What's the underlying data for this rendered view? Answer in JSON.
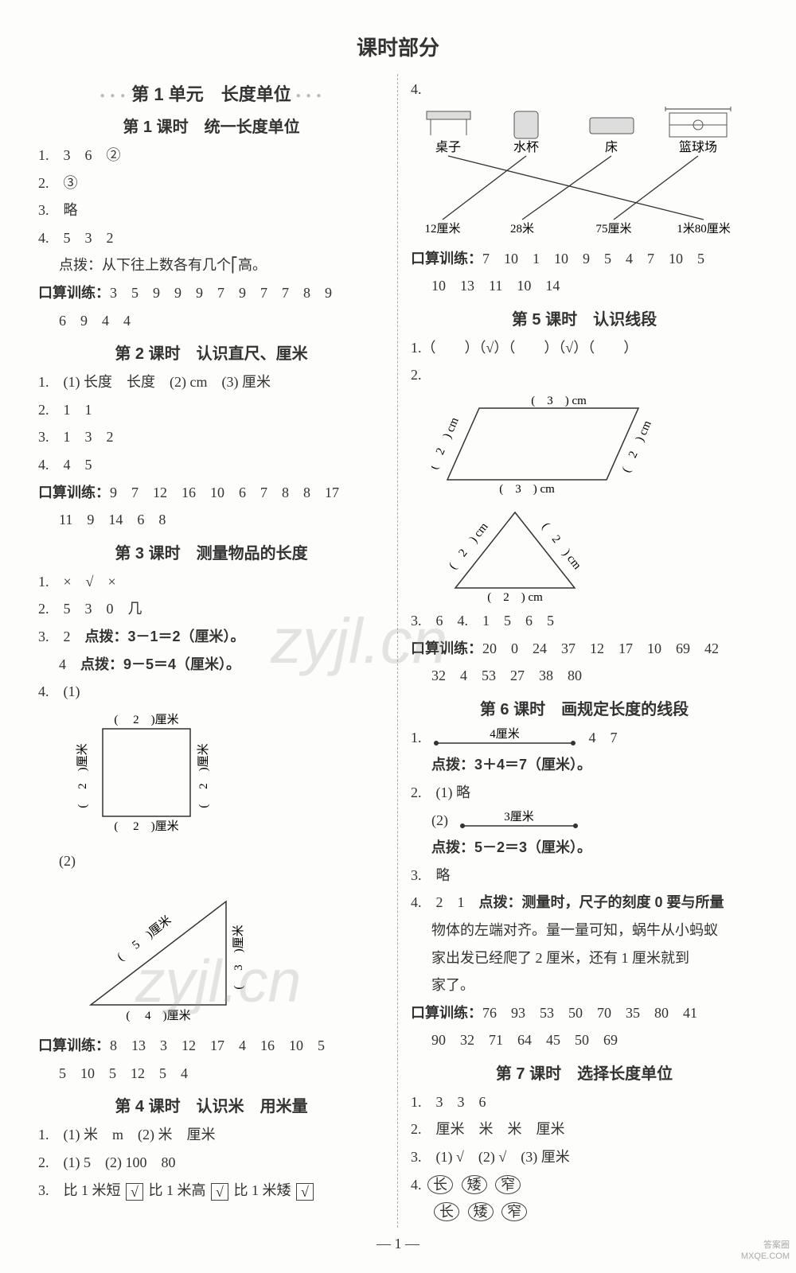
{
  "page_title": "课时部分",
  "page_number": "— 1 —",
  "watermark": "zyjl.cn",
  "corner": {
    "line1": "答案圈",
    "line2": "MXQE.COM"
  },
  "unit1": {
    "header": "第 1 单元　长度单位"
  },
  "lesson1": {
    "title": "第 1 课时　统一长度单位",
    "q1": "1.　3　6　②",
    "q2": "2.　③",
    "q3": "3.　略",
    "q4": "4.　5　3　2",
    "hint": "点拨：从下往上数各有几个⎡高。",
    "calc_label": "口算训练：",
    "calc1": "3　5　9　9　9　7　9　7　7　8　9",
    "calc2": "6　9　4　4"
  },
  "lesson2": {
    "title": "第 2 课时　认识直尺、厘米",
    "q1": "1.　(1) 长度　长度　(2) cm　(3) 厘米",
    "q2": "2.　1　1",
    "q3": "3.　1　3　2",
    "q4": "4.　4　5",
    "calc_label": "口算训练：",
    "calc1": "9　7　12　16　10　6　7　8　8　17",
    "calc2": "11　9　14　6　8"
  },
  "lesson3": {
    "title": "第 3 课时　测量物品的长度",
    "q1": "1.　×　√　×",
    "q2": "2.　5　3　0　几",
    "q3a": "3.　2　",
    "q3a_hint": "点拨：3－1＝2（厘米）。",
    "q3b": "4　",
    "q3b_hint": "点拨：9－5＝4（厘米）。",
    "q4_1": "4.　(1)",
    "square": {
      "top": "( 　2　)厘米",
      "right": "( 　2　)厘米",
      "bottom": "( 　2　)厘米",
      "left": "( 　2　)厘米"
    },
    "q4_2": "(2)",
    "triangle": {
      "hyp": "( 　5　)厘米",
      "right": "( 　3　)厘米",
      "bottom": "( 　4　)厘米"
    },
    "calc_label": "口算训练：",
    "calc1": "8　13　3　12　17　4　16　10　5",
    "calc2": "5　10　5　12　5　4"
  },
  "lesson4": {
    "title": "第 4 课时　认识米　用米量",
    "q1": "1.　(1) 米　m　(2) 米　厘米",
    "q2": "2.　(1) 5　(2) 100　80",
    "q3_a": "3.　比 1 米短",
    "q3_b": "比 1 米高",
    "q3_c": "比 1 米矮",
    "tick": "√",
    "q4_label": "4.",
    "match": {
      "items": [
        "桌子",
        "水杯",
        "床",
        "篮球场"
      ],
      "values": [
        "12厘米",
        "28米",
        "75厘米",
        "1米80厘米"
      ],
      "edges": [
        [
          0,
          3
        ],
        [
          1,
          0
        ],
        [
          2,
          1
        ],
        [
          3,
          2
        ]
      ]
    },
    "calc_label": "口算训练：",
    "calc1": "7　10　1　10　9　5　4　7　10　5",
    "calc2": "10　13　11　10　14"
  },
  "lesson5": {
    "title": "第 5 课时　认识线段",
    "q1": "1.（　　）（√）（　　）（√）（　　）",
    "q2_label": "2.",
    "parallelogram": {
      "top": "(　3　) cm",
      "right": "(　2　) cm",
      "bottom": "(　3　) cm",
      "left": "(　2　) cm"
    },
    "triangle2": {
      "left": "(　2　) cm",
      "right": "(　2　) cm",
      "bottom": "(　2　) cm"
    },
    "q3": "3.　6　4.　1　5　6　5",
    "calc_label": "口算训练：",
    "calc1": "20　0　24　37　12　17　10　69　42",
    "calc2": "32　4　53　27　38　80"
  },
  "lesson6": {
    "title": "第 6 课时　画规定长度的线段",
    "q1_label": "1.",
    "q1_seg": "4厘米",
    "q1_ans": "4　7",
    "q1_hint": "点拨：3＋4＝7（厘米）。",
    "q2a": "2.　(1) 略",
    "q2b_label": "(2)",
    "q2b_seg": "3厘米",
    "q2b_hint": "点拨：5－2＝3（厘米）。",
    "q3": "3.　略",
    "q4": "4.　2　1　",
    "q4_hint1": "点拨：测量时，尺子的刻度 0 要与所量",
    "q4_hint2": "物体的左端对齐。量一量可知，蜗牛从小蚂蚁",
    "q4_hint3": "家出发已经爬了 2 厘米，还有 1 厘米就到",
    "q4_hint4": "家了。",
    "calc_label": "口算训练：",
    "calc1": "76　93　53　50　70　35　80　41",
    "calc2": "90　32　71　64　45　50　69"
  },
  "lesson7": {
    "title": "第 7 课时　选择长度单位",
    "q1": "1.　3　3　6",
    "q2": "2.　厘米　米　米　厘米",
    "q3": "3.　(1) √　(2) √　(3) 厘米",
    "q4_label": "4.",
    "q4_row1": [
      "长",
      "矮",
      "窄"
    ],
    "q4_row2": [
      "长",
      "矮",
      "窄"
    ]
  }
}
